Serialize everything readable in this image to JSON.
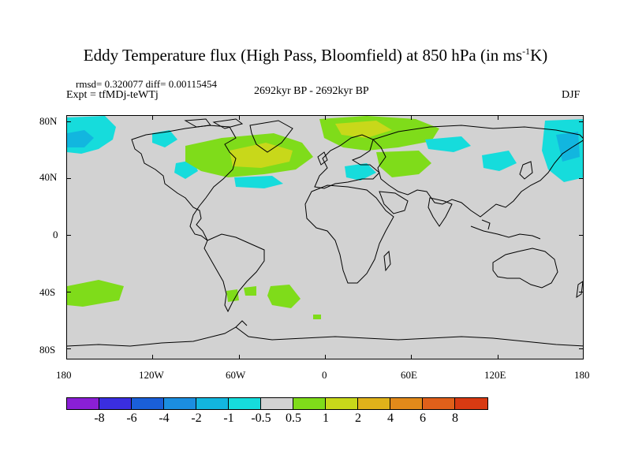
{
  "title": {
    "main": "Eddy Temperature flux (High Pass, Bloomfield) at 850 hPa (in ms",
    "sup": "-1",
    "tail": "K)"
  },
  "stats": "rmsd= 0.320077  diff= 0.00115454",
  "experiment": "Expt = tfMDj-teWTj",
  "period": "2692kyr BP - 2692kyr BP",
  "season": "DJF",
  "axes": {
    "lat_labels": [
      "80N",
      "40N",
      "0",
      "40S",
      "80S"
    ],
    "lon_labels": [
      "180",
      "120W",
      "60W",
      "0",
      "60E",
      "120E",
      "180"
    ]
  },
  "colorbar": {
    "colors": [
      "#8a1fd6",
      "#3a2ee0",
      "#1a5fd8",
      "#1b8ee0",
      "#12b6df",
      "#16dcdc",
      "#d2d2d2",
      "#7fdc1a",
      "#c8d81a",
      "#e0b21a",
      "#e28a1a",
      "#e0601a",
      "#d83a12"
    ],
    "labels": [
      "-8",
      "-6",
      "-4",
      "-2",
      "-1",
      "-0.5",
      "0.5",
      "1",
      "2",
      "4",
      "6",
      "8"
    ]
  },
  "field_colors": {
    "neg_small": "#16dcdc",
    "neg_mid": "#12b6df",
    "pos_small": "#7fdc1a",
    "pos_mid": "#c8d81a"
  }
}
